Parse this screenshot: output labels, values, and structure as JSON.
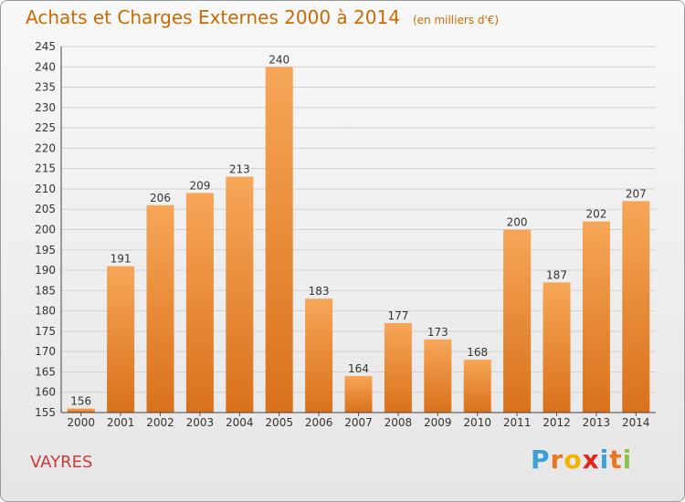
{
  "header": {
    "title": "Achats et Charges Externes 2000 à 2014",
    "subtitle": "(en milliers d'€)"
  },
  "commune": "VAYRES",
  "logo": {
    "letters": [
      "P",
      "r",
      "o",
      "x",
      "i",
      "t",
      "i"
    ],
    "colors": [
      "#3b9fd8",
      "#e87722",
      "#f2b300",
      "#e2261d",
      "#3b9fd8",
      "#e87722",
      "#8bc34a"
    ]
  },
  "colors": {
    "bar_light": "#f7a658",
    "bar_dark": "#d9711b",
    "title": "#cc6a00",
    "commune": "#cc3a3a"
  },
  "chart_data": {
    "type": "bar",
    "categories": [
      "2000",
      "2001",
      "2002",
      "2003",
      "2004",
      "2005",
      "2006",
      "2007",
      "2008",
      "2009",
      "2010",
      "2011",
      "2012",
      "2013",
      "2014"
    ],
    "values": [
      156,
      191,
      206,
      209,
      213,
      240,
      183,
      164,
      177,
      173,
      168,
      200,
      187,
      202,
      207
    ],
    "ylim": [
      155,
      245
    ],
    "yticks": [
      155,
      160,
      165,
      170,
      175,
      180,
      185,
      190,
      195,
      200,
      205,
      210,
      215,
      220,
      225,
      230,
      235,
      240,
      245
    ],
    "grid": true,
    "data_labels": true
  }
}
